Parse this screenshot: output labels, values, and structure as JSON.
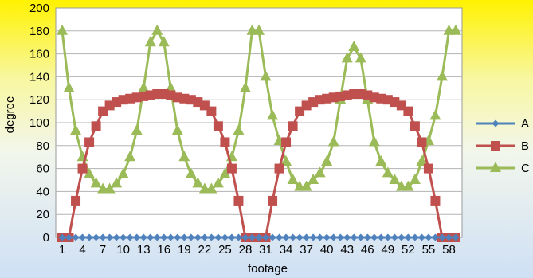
{
  "chart_data": {
    "type": "line",
    "title": "",
    "xlabel": "footage",
    "ylabel": "degree",
    "ylim": [
      0,
      200
    ],
    "yticks": [
      0,
      20,
      40,
      60,
      80,
      100,
      120,
      140,
      160,
      180,
      200
    ],
    "x": [
      1,
      2,
      3,
      4,
      5,
      6,
      7,
      8,
      9,
      10,
      11,
      12,
      13,
      14,
      15,
      16,
      17,
      18,
      19,
      20,
      21,
      22,
      23,
      24,
      25,
      26,
      27,
      28,
      29,
      30,
      31,
      32,
      33,
      34,
      35,
      36,
      37,
      38,
      39,
      40,
      41,
      42,
      43,
      44,
      45,
      46,
      47,
      48,
      49,
      50,
      51,
      52,
      53,
      54,
      55,
      56,
      57,
      58,
      59
    ],
    "xticks": [
      1,
      4,
      7,
      10,
      13,
      16,
      19,
      22,
      25,
      28,
      31,
      34,
      37,
      40,
      43,
      46,
      49,
      52,
      55,
      58
    ],
    "grid": true,
    "legend_position": "right",
    "series": [
      {
        "name": "A",
        "color": "#4F81BD",
        "marker": "diamond",
        "values": [
          0,
          0,
          0,
          0,
          0,
          0,
          0,
          0,
          0,
          0,
          0,
          0,
          0,
          0,
          0,
          0,
          0,
          0,
          0,
          0,
          0,
          0,
          0,
          0,
          0,
          0,
          0,
          0,
          0,
          0,
          0,
          0,
          0,
          0,
          0,
          0,
          0,
          0,
          0,
          0,
          0,
          0,
          0,
          0,
          0,
          0,
          0,
          0,
          0,
          0,
          0,
          0,
          0,
          0,
          0,
          0,
          0,
          0,
          0
        ]
      },
      {
        "name": "B",
        "color": "#C0504D",
        "marker": "square",
        "values": [
          0,
          0,
          32,
          60,
          83,
          97,
          110,
          115,
          118,
          120,
          121,
          122,
          123,
          124,
          125,
          125,
          124,
          122,
          121,
          120,
          118,
          115,
          110,
          97,
          83,
          60,
          32,
          0,
          0,
          0,
          0,
          32,
          60,
          83,
          97,
          110,
          115,
          118,
          120,
          121,
          122,
          123,
          124,
          125,
          125,
          124,
          122,
          121,
          120,
          118,
          115,
          110,
          97,
          83,
          60,
          32,
          0,
          0,
          0
        ]
      },
      {
        "name": "C",
        "color": "#9BBB59",
        "marker": "triangle",
        "values": [
          180,
          130,
          93,
          70,
          55,
          47,
          42,
          42,
          47,
          55,
          70,
          93,
          130,
          170,
          180,
          170,
          130,
          93,
          70,
          55,
          47,
          42,
          42,
          47,
          55,
          70,
          93,
          130,
          180,
          180,
          140,
          106,
          84,
          66,
          50,
          44,
          44,
          50,
          56,
          66,
          83,
          120,
          156,
          166,
          156,
          120,
          83,
          66,
          56,
          50,
          44,
          44,
          50,
          66,
          84,
          106,
          140,
          180,
          180
        ]
      }
    ]
  }
}
